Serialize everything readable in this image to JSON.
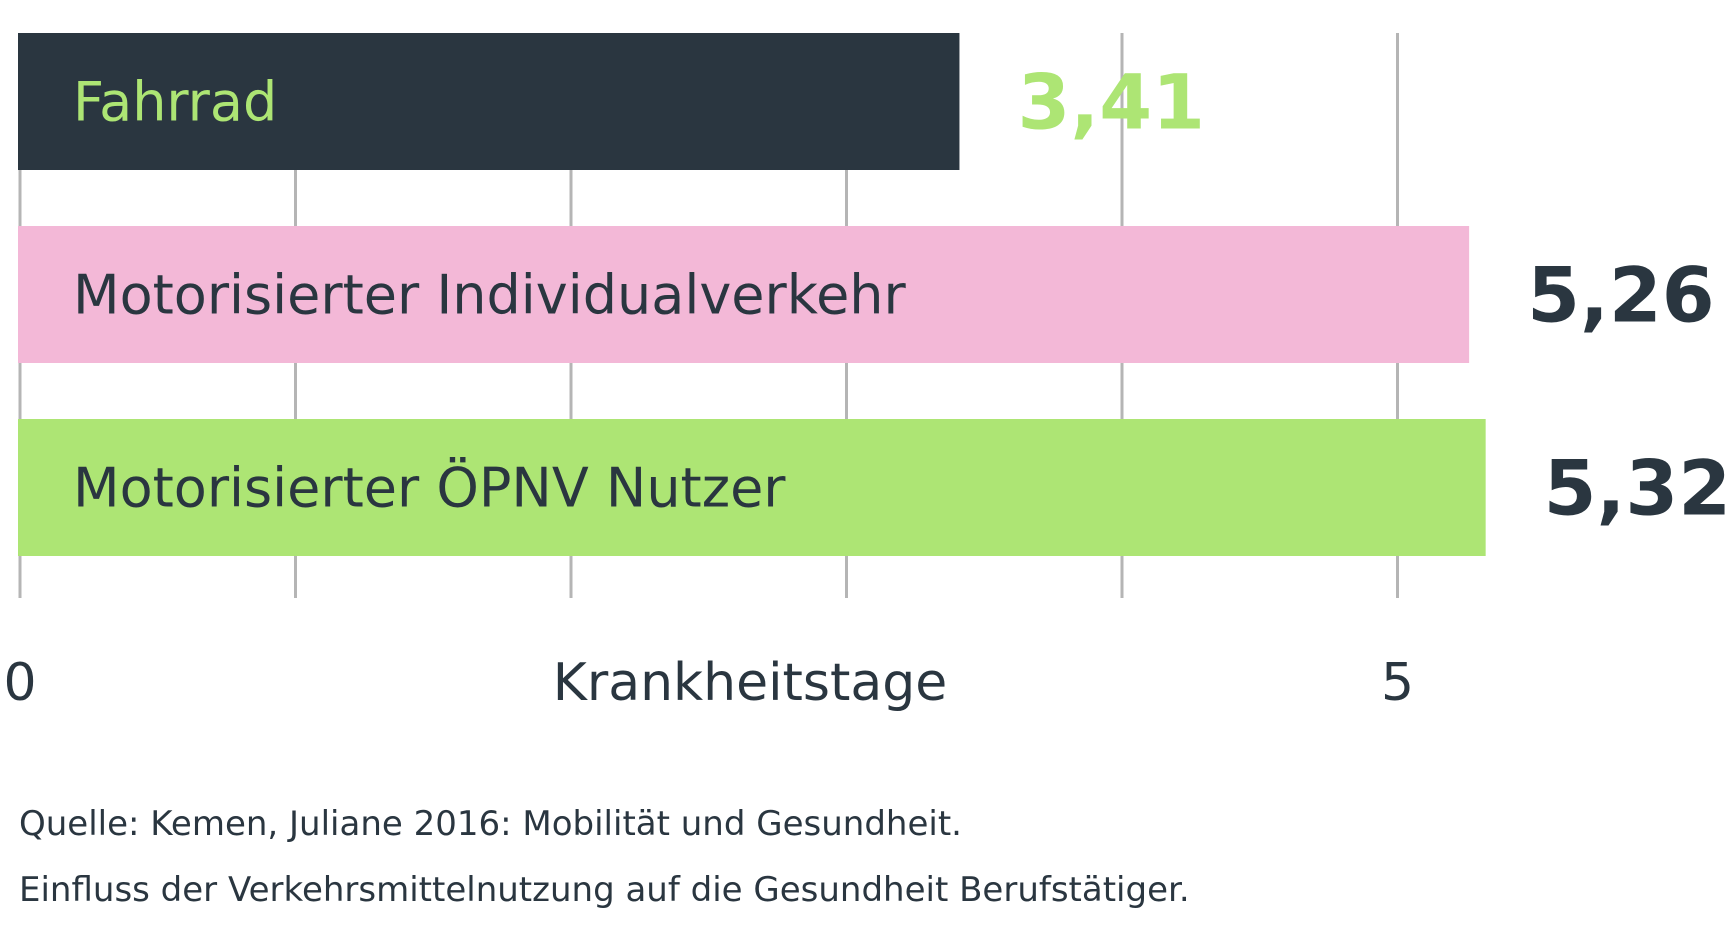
{
  "chart_data": {
    "type": "bar",
    "orientation": "horizontal",
    "categories": [
      "Fahrrad",
      "Motorisierter Individualverkehr",
      "Motorisierter ÖPNV Nutzer"
    ],
    "values": [
      3.41,
      5.26,
      5.32
    ],
    "value_labels": [
      "3,41",
      "5,26",
      "5,32"
    ],
    "xlabel": "Krankheitstage",
    "xlim": [
      0,
      5.5
    ],
    "tick_values": [
      0,
      5
    ],
    "tick_labels": [
      "0",
      "5"
    ],
    "gridline_values": [
      0,
      1,
      2,
      3,
      4,
      5
    ],
    "grid": true,
    "bar_colors": [
      "#2a3640",
      "#f3b8d7",
      "#ade574"
    ],
    "bar_label_colors": [
      "#ade574",
      "#2a3640",
      "#2a3640"
    ],
    "value_label_colors": [
      "#ade574",
      "#2a3640",
      "#2a3640"
    ]
  },
  "source": {
    "line1": "Quelle: Kemen, Juliane 2016: Mobilität und Gesundheit.",
    "line2": "Einfluss der Verkehrsmittelnutzung auf die Gesundheit Berufstätiger."
  }
}
